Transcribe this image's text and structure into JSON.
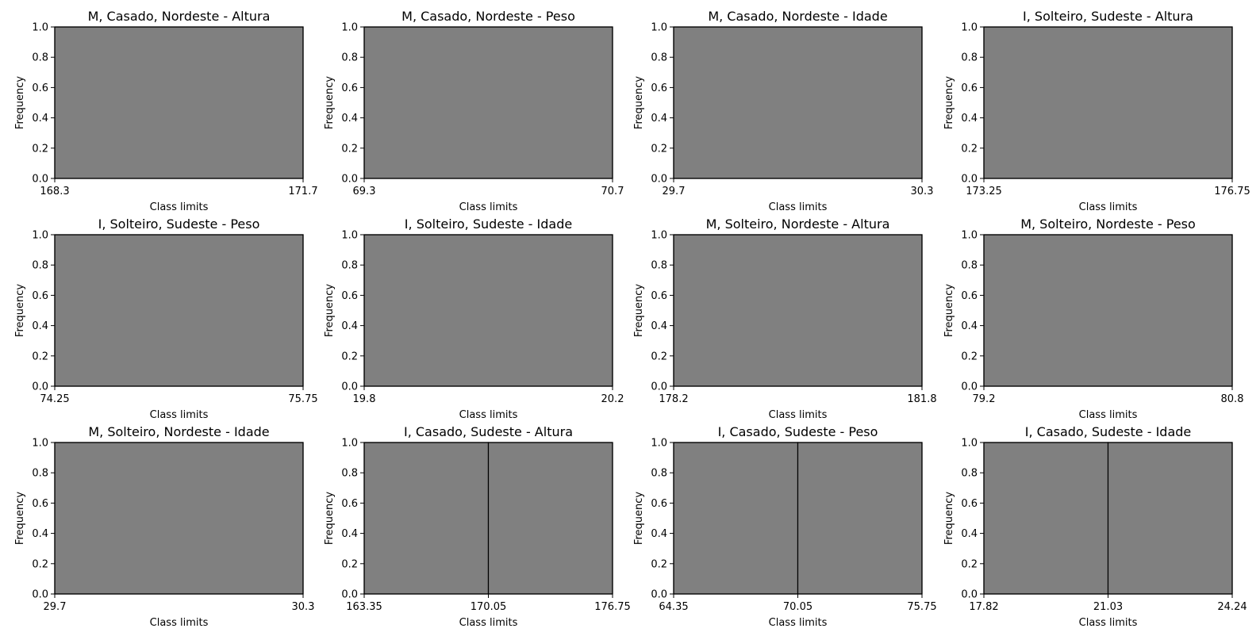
{
  "style": {
    "bar_color": "#808080",
    "edge_color": "#000000",
    "background": "#ffffff"
  },
  "chart_data": [
    {
      "type": "bar",
      "title": "M, Casado, Nordeste - Altura",
      "xlabel": "Class limits",
      "ylabel": "Frequency",
      "xticks": [
        "168.3",
        "171.7"
      ],
      "xlim": [
        168.3,
        171.7
      ],
      "ylim": [
        0,
        1.0
      ],
      "yticks": [
        "0.0",
        "0.2",
        "0.4",
        "0.6",
        "0.8",
        "1.0"
      ],
      "bins": [
        {
          "x0": 168.3,
          "x1": 171.7,
          "value": 1
        }
      ]
    },
    {
      "type": "bar",
      "title": "M, Casado, Nordeste - Peso",
      "xlabel": "Class limits",
      "ylabel": "Frequency",
      "xticks": [
        "69.3",
        "70.7"
      ],
      "xlim": [
        69.3,
        70.7
      ],
      "ylim": [
        0,
        1.0
      ],
      "yticks": [
        "0.0",
        "0.2",
        "0.4",
        "0.6",
        "0.8",
        "1.0"
      ],
      "bins": [
        {
          "x0": 69.3,
          "x1": 70.7,
          "value": 1
        }
      ]
    },
    {
      "type": "bar",
      "title": "M, Casado, Nordeste - Idade",
      "xlabel": "Class limits",
      "ylabel": "Frequency",
      "xticks": [
        "29.7",
        "30.3"
      ],
      "xlim": [
        29.7,
        30.3
      ],
      "ylim": [
        0,
        1.0
      ],
      "yticks": [
        "0.0",
        "0.2",
        "0.4",
        "0.6",
        "0.8",
        "1.0"
      ],
      "bins": [
        {
          "x0": 29.7,
          "x1": 30.3,
          "value": 1
        }
      ]
    },
    {
      "type": "bar",
      "title": "I, Solteiro, Sudeste - Altura",
      "xlabel": "Class limits",
      "ylabel": "Frequency",
      "xticks": [
        "173.25",
        "176.75"
      ],
      "xlim": [
        173.25,
        176.75
      ],
      "ylim": [
        0,
        1.0
      ],
      "yticks": [
        "0.0",
        "0.2",
        "0.4",
        "0.6",
        "0.8",
        "1.0"
      ],
      "bins": [
        {
          "x0": 173.25,
          "x1": 176.75,
          "value": 1
        }
      ]
    },
    {
      "type": "bar",
      "title": "I, Solteiro, Sudeste - Peso",
      "xlabel": "Class limits",
      "ylabel": "Frequency",
      "xticks": [
        "74.25",
        "75.75"
      ],
      "xlim": [
        74.25,
        75.75
      ],
      "ylim": [
        0,
        1.0
      ],
      "yticks": [
        "0.0",
        "0.2",
        "0.4",
        "0.6",
        "0.8",
        "1.0"
      ],
      "bins": [
        {
          "x0": 74.25,
          "x1": 75.75,
          "value": 1
        }
      ]
    },
    {
      "type": "bar",
      "title": "I, Solteiro, Sudeste - Idade",
      "xlabel": "Class limits",
      "ylabel": "Frequency",
      "xticks": [
        "19.8",
        "20.2"
      ],
      "xlim": [
        19.8,
        20.2
      ],
      "ylim": [
        0,
        1.0
      ],
      "yticks": [
        "0.0",
        "0.2",
        "0.4",
        "0.6",
        "0.8",
        "1.0"
      ],
      "bins": [
        {
          "x0": 19.8,
          "x1": 20.2,
          "value": 1
        }
      ]
    },
    {
      "type": "bar",
      "title": "M, Solteiro, Nordeste - Altura",
      "xlabel": "Class limits",
      "ylabel": "Frequency",
      "xticks": [
        "178.2",
        "181.8"
      ],
      "xlim": [
        178.2,
        181.8
      ],
      "ylim": [
        0,
        1.0
      ],
      "yticks": [
        "0.0",
        "0.2",
        "0.4",
        "0.6",
        "0.8",
        "1.0"
      ],
      "bins": [
        {
          "x0": 178.2,
          "x1": 181.8,
          "value": 1
        }
      ]
    },
    {
      "type": "bar",
      "title": "M, Solteiro, Nordeste - Peso",
      "xlabel": "Class limits",
      "ylabel": "Frequency",
      "xticks": [
        "79.2",
        "80.8"
      ],
      "xlim": [
        79.2,
        80.8
      ],
      "ylim": [
        0,
        1.0
      ],
      "yticks": [
        "0.0",
        "0.2",
        "0.4",
        "0.6",
        "0.8",
        "1.0"
      ],
      "bins": [
        {
          "x0": 79.2,
          "x1": 80.8,
          "value": 1
        }
      ]
    },
    {
      "type": "bar",
      "title": "M, Solteiro, Nordeste - Idade",
      "xlabel": "Class limits",
      "ylabel": "Frequency",
      "xticks": [
        "29.7",
        "30.3"
      ],
      "xlim": [
        29.7,
        30.3
      ],
      "ylim": [
        0,
        1.0
      ],
      "yticks": [
        "0.0",
        "0.2",
        "0.4",
        "0.6",
        "0.8",
        "1.0"
      ],
      "bins": [
        {
          "x0": 29.7,
          "x1": 30.3,
          "value": 1
        }
      ]
    },
    {
      "type": "bar",
      "title": "I, Casado, Sudeste - Altura",
      "xlabel": "Class limits",
      "ylabel": "Frequency",
      "xticks": [
        "163.35",
        "170.05",
        "176.75"
      ],
      "xlim": [
        163.35,
        176.75
      ],
      "ylim": [
        0,
        1.0
      ],
      "yticks": [
        "0.0",
        "0.2",
        "0.4",
        "0.6",
        "0.8",
        "1.0"
      ],
      "bins": [
        {
          "x0": 163.35,
          "x1": 170.05,
          "value": 1
        },
        {
          "x0": 170.05,
          "x1": 176.75,
          "value": 1
        }
      ]
    },
    {
      "type": "bar",
      "title": "I, Casado, Sudeste - Peso",
      "xlabel": "Class limits",
      "ylabel": "Frequency",
      "xticks": [
        "64.35",
        "70.05",
        "75.75"
      ],
      "xlim": [
        64.35,
        75.75
      ],
      "ylim": [
        0,
        1.0
      ],
      "yticks": [
        "0.0",
        "0.2",
        "0.4",
        "0.6",
        "0.8",
        "1.0"
      ],
      "bins": [
        {
          "x0": 64.35,
          "x1": 70.05,
          "value": 1
        },
        {
          "x0": 70.05,
          "x1": 75.75,
          "value": 1
        }
      ]
    },
    {
      "type": "bar",
      "title": "I, Casado, Sudeste - Idade",
      "xlabel": "Class limits",
      "ylabel": "Frequency",
      "xticks": [
        "17.82",
        "21.03",
        "24.24"
      ],
      "xlim": [
        17.82,
        24.24
      ],
      "ylim": [
        0,
        1.0
      ],
      "yticks": [
        "0.0",
        "0.2",
        "0.4",
        "0.6",
        "0.8",
        "1.0"
      ],
      "bins": [
        {
          "x0": 17.82,
          "x1": 21.03,
          "value": 1
        },
        {
          "x0": 21.03,
          "x1": 24.24,
          "value": 1
        }
      ]
    }
  ]
}
